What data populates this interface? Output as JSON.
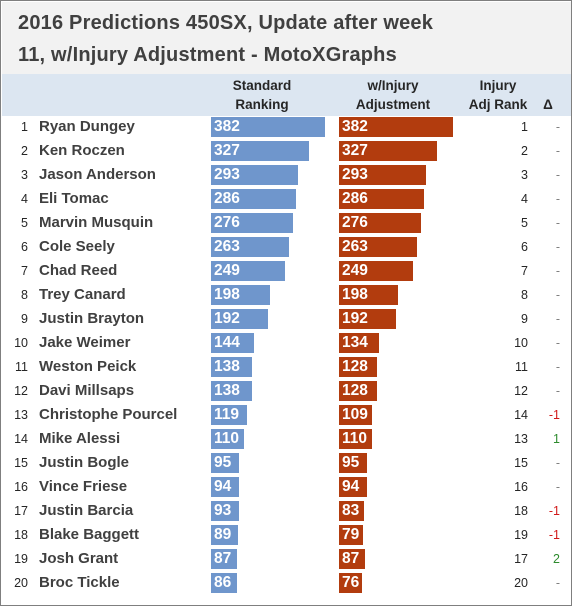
{
  "title_line1": "2016 Predictions 450SX, Update after week",
  "title_line2": "11, w/Injury Adjustment - MotoXGraphs",
  "headers": {
    "standard": [
      "Standard",
      "Ranking"
    ],
    "adjusted": [
      "w/Injury",
      "Adjustment"
    ],
    "adj_rank": [
      "Injury",
      "Adj Rank"
    ],
    "delta": "Δ"
  },
  "colors": {
    "standard_bar": "#6f96cc",
    "adjusted_bar": "#b23c0e",
    "delta_up": "#2e8b2e",
    "delta_down": "#d11a1a",
    "delta_none": "#7f7f7f"
  },
  "chart_data": {
    "type": "bar",
    "title": "2016 Predictions 450SX, Update after week 11, w/Injury Adjustment - MotoXGraphs",
    "categories": [
      "Ryan Dungey",
      "Ken Roczen",
      "Jason Anderson",
      "Eli Tomac",
      "Marvin Musquin",
      "Cole Seely",
      "Chad Reed",
      "Trey Canard",
      "Justin Brayton",
      "Jake Weimer",
      "Weston Peick",
      "Davi Millsaps",
      "Christophe Pourcel",
      "Mike Alessi",
      "Justin Bogle",
      "Vince Friese",
      "Justin Barcia",
      "Blake Baggett",
      "Josh Grant",
      "Broc Tickle"
    ],
    "ranks": [
      "1",
      "2",
      "3",
      "4",
      "5",
      "6",
      "7",
      "8",
      "9",
      "10",
      "11",
      "12",
      "13",
      "14",
      "15",
      "16",
      "17",
      "18",
      "19",
      "20"
    ],
    "series": [
      {
        "name": "Standard Ranking",
        "values": [
          382,
          327,
          293,
          286,
          276,
          263,
          249,
          198,
          192,
          144,
          138,
          138,
          119,
          110,
          95,
          94,
          93,
          89,
          87,
          86
        ]
      },
      {
        "name": "w/Injury Adjustment",
        "values": [
          382,
          327,
          293,
          286,
          276,
          263,
          249,
          198,
          192,
          134,
          128,
          128,
          109,
          110,
          95,
          94,
          83,
          79,
          87,
          76
        ]
      }
    ],
    "adj_rank": [
      "1",
      "2",
      "3",
      "4",
      "5",
      "6",
      "7",
      "8",
      "9",
      "10",
      "11",
      "12",
      "14",
      "13",
      "15",
      "16",
      "18",
      "19",
      "17",
      "20"
    ],
    "delta": [
      "-",
      "-",
      "-",
      "-",
      "-",
      "-",
      "-",
      "-",
      "-",
      "-",
      "-",
      "-",
      "-1",
      "1",
      "-",
      "-",
      "-1",
      "-1",
      "2",
      "-"
    ],
    "xlim": [
      0,
      382
    ]
  }
}
